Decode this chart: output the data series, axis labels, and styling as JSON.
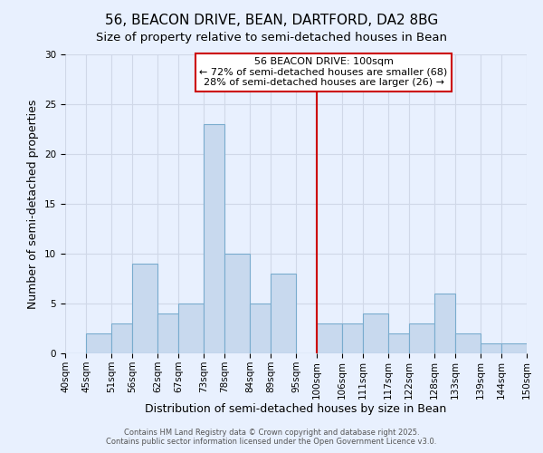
{
  "title": "56, BEACON DRIVE, BEAN, DARTFORD, DA2 8BG",
  "subtitle": "Size of property relative to semi-detached houses in Bean",
  "xlabel": "Distribution of semi-detached houses by size in Bean",
  "ylabel": "Number of semi-detached properties",
  "background_color": "#e8f0fe",
  "bar_color": "#c8d9ee",
  "bar_edge_color": "#7aacce",
  "grid_color": "#d0d8e8",
  "bins": [
    40,
    45,
    51,
    56,
    62,
    67,
    73,
    78,
    84,
    89,
    95,
    100,
    106,
    111,
    117,
    122,
    128,
    133,
    139,
    144,
    150
  ],
  "bin_labels": [
    "40sqm",
    "45sqm",
    "51sqm",
    "56sqm",
    "62sqm",
    "67sqm",
    "73sqm",
    "78sqm",
    "84sqm",
    "89sqm",
    "95sqm",
    "100sqm",
    "106sqm",
    "111sqm",
    "117sqm",
    "122sqm",
    "128sqm",
    "133sqm",
    "139sqm",
    "144sqm",
    "150sqm"
  ],
  "counts": [
    0,
    2,
    3,
    9,
    4,
    5,
    23,
    10,
    5,
    8,
    0,
    3,
    3,
    4,
    2,
    3,
    6,
    2,
    1,
    1
  ],
  "vline_x": 100,
  "vline_color": "#cc0000",
  "annotation_title": "56 BEACON DRIVE: 100sqm",
  "annotation_line1": "← 72% of semi-detached houses are smaller (68)",
  "annotation_line2": "28% of semi-detached houses are larger (26) →",
  "annotation_box_color": "#ffffff",
  "annotation_box_edge": "#cc0000",
  "ylim": [
    0,
    30
  ],
  "yticks": [
    0,
    5,
    10,
    15,
    20,
    25,
    30
  ],
  "footer1": "Contains HM Land Registry data © Crown copyright and database right 2025.",
  "footer2": "Contains public sector information licensed under the Open Government Licence v3.0.",
  "title_fontsize": 11,
  "subtitle_fontsize": 9.5,
  "axis_label_fontsize": 9,
  "tick_fontsize": 7.5,
  "annotation_fontsize": 8
}
